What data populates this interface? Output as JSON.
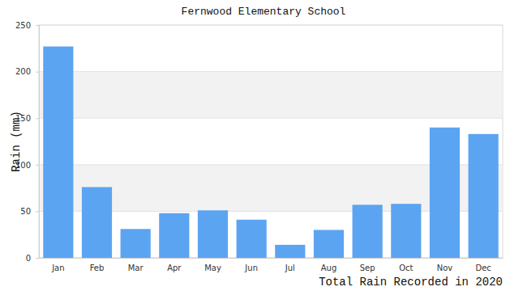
{
  "chart_data": {
    "type": "bar",
    "title": "Fernwood Elementary School",
    "y_label": "Rain (mm)",
    "x_label": "Total Rain Recorded in 2020",
    "categories": [
      "Jan",
      "Feb",
      "Mar",
      "Apr",
      "May",
      "Jun",
      "Jul",
      "Aug",
      "Sep",
      "Oct",
      "Nov",
      "Dec"
    ],
    "values": [
      227,
      76,
      31,
      48,
      51,
      41,
      14,
      30,
      57,
      58,
      140,
      133
    ],
    "color": "#5ba4f1",
    "ylim": [
      0,
      250
    ],
    "yticks": [
      0,
      50,
      100,
      150,
      200,
      250
    ],
    "grid": true
  }
}
